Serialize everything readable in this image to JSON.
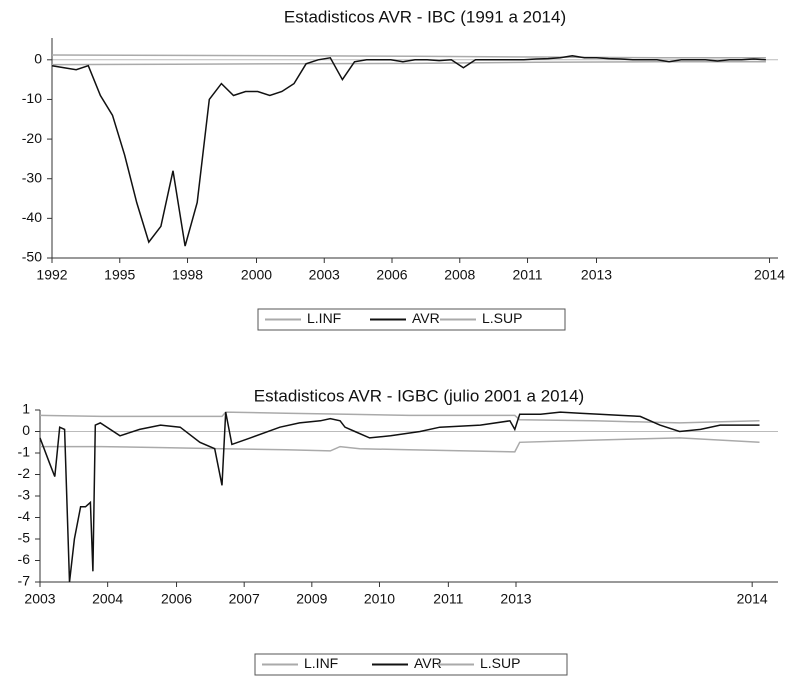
{
  "chart_data": [
    {
      "type": "line",
      "title": "Estadisticos AVR - IBC (1991 a 2014)",
      "xlim": [
        0,
        60
      ],
      "ylim": [
        -50,
        5.5
      ],
      "yticks": [
        0,
        -10,
        -20,
        -30,
        -40,
        -50
      ],
      "xticks": [
        {
          "value": 0,
          "label": "1992"
        },
        {
          "value": 5.6,
          "label": "1995"
        },
        {
          "value": 11.2,
          "label": "1998"
        },
        {
          "value": 16.9,
          "label": "2000"
        },
        {
          "value": 22.5,
          "label": "2003"
        },
        {
          "value": 28.1,
          "label": "2006"
        },
        {
          "value": 33.7,
          "label": "2008"
        },
        {
          "value": 39.3,
          "label": "2011"
        },
        {
          "value": 45.0,
          "label": "2013"
        },
        {
          "value": 59.3,
          "label": "2014"
        }
      ],
      "series": [
        {
          "name": "L.INF",
          "color": "#aaaaaa",
          "x": [
            0,
            10,
            20,
            30,
            40,
            50,
            59
          ],
          "values": [
            -1.2,
            -1.1,
            -1.0,
            -0.9,
            -0.6,
            -0.5,
            -0.5
          ]
        },
        {
          "name": "AVR",
          "color": "#111111",
          "x": [
            0,
            1,
            2,
            3,
            4,
            5,
            6,
            7,
            8,
            9,
            10,
            11,
            12,
            13,
            14,
            15,
            16,
            17,
            18,
            19,
            20,
            21,
            22,
            23,
            24,
            25,
            26,
            27,
            28,
            29,
            30,
            31,
            32,
            33,
            34,
            35,
            36,
            37,
            38,
            39,
            40,
            41,
            42,
            43,
            44,
            45,
            46,
            47,
            48,
            49,
            50,
            51,
            52,
            53,
            54,
            55,
            56,
            57,
            58,
            59
          ],
          "values": [
            -1.5,
            -2,
            -2.5,
            -1.5,
            -9,
            -14,
            -24,
            -36,
            -46,
            -42,
            -28,
            -47,
            -36,
            -10,
            -6,
            -9,
            -8,
            -8,
            -9,
            -8,
            -6,
            -1,
            0,
            0.5,
            -5,
            -0.5,
            0,
            0,
            0,
            -0.5,
            0,
            0,
            -0.2,
            0,
            -2,
            0,
            0,
            0,
            0,
            0,
            0.2,
            0.3,
            0.5,
            1,
            0.5,
            0.5,
            0.3,
            0.2,
            0,
            0,
            0,
            -0.5,
            0,
            0,
            0,
            -0.3,
            0,
            0,
            0.2,
            0
          ]
        },
        {
          "name": "L.SUP",
          "color": "#aaaaaa",
          "x": [
            0,
            10,
            20,
            30,
            40,
            50,
            59
          ],
          "values": [
            1.2,
            1.1,
            1.0,
            0.9,
            0.7,
            0.5,
            0.5
          ]
        }
      ]
    },
    {
      "type": "line",
      "title": "Estadisticos AVR - IGBC (julio 2001 a 2014)",
      "xlim": [
        0,
        60
      ],
      "ylim": [
        -7,
        1
      ],
      "yticks": [
        1,
        0,
        -1,
        -2,
        -3,
        -4,
        -5,
        -6,
        -7
      ],
      "xticks": [
        {
          "value": 0,
          "label": "2003"
        },
        {
          "value": 5.5,
          "label": "2004"
        },
        {
          "value": 11.1,
          "label": "2006"
        },
        {
          "value": 16.6,
          "label": "2007"
        },
        {
          "value": 22.1,
          "label": "2009"
        },
        {
          "value": 27.6,
          "label": "2010"
        },
        {
          "value": 33.2,
          "label": "2011"
        },
        {
          "value": 38.7,
          "label": "2013"
        },
        {
          "value": 57.9,
          "label": "2014"
        }
      ],
      "series": [
        {
          "name": "L.INF",
          "color": "#aaaaaa",
          "x": [
            0,
            5,
            10,
            14.8,
            20,
            23.6,
            24.4,
            26,
            30,
            38.6,
            39.0,
            45,
            52,
            58.5
          ],
          "values": [
            -0.7,
            -0.7,
            -0.75,
            -0.8,
            -0.85,
            -0.9,
            -0.7,
            -0.8,
            -0.85,
            -0.95,
            -0.5,
            -0.4,
            -0.3,
            -0.5
          ]
        },
        {
          "name": "AVR",
          "color": "#111111",
          "x": [
            0,
            0.8,
            1.2,
            1.6,
            2.0,
            2.4,
            2.8,
            3.3,
            3.7,
            4.1,
            4.3,
            4.5,
            4.9,
            6.5,
            8.1,
            9.8,
            11.4,
            13.0,
            14.2,
            14.8,
            15.1,
            15.6,
            17.1,
            19.5,
            21.1,
            22.8,
            23.6,
            24.4,
            24.8,
            25.6,
            26.8,
            28.5,
            30.9,
            32.5,
            35.8,
            38.2,
            38.6,
            39.0,
            40.7,
            42.3,
            43.9,
            45.5,
            47.2,
            48.8,
            50.4,
            52.0,
            53.7,
            55.3,
            56.9,
            58.5
          ],
          "values": [
            -0.3,
            -1.5,
            -2.1,
            0.2,
            0.1,
            -7,
            -5,
            -3.5,
            -3.5,
            -3.3,
            -6.5,
            0.3,
            0.4,
            -0.2,
            0.1,
            0.3,
            0.2,
            -0.5,
            -0.8,
            -2.5,
            0.9,
            -0.6,
            -0.3,
            0.2,
            0.4,
            0.5,
            0.6,
            0.5,
            0.2,
            0,
            -0.3,
            -0.2,
            0,
            0.2,
            0.3,
            0.5,
            0.1,
            0.8,
            0.8,
            0.9,
            0.85,
            0.8,
            0.75,
            0.7,
            0.3,
            0,
            0.1,
            0.3,
            0.3,
            0.3
          ]
        },
        {
          "name": "L.SUP",
          "color": "#aaaaaa",
          "x": [
            0,
            5,
            10,
            14.8,
            15.1,
            20,
            25,
            30,
            38.6,
            39.0,
            45,
            52,
            58.5
          ],
          "values": [
            0.75,
            0.7,
            0.7,
            0.7,
            0.9,
            0.85,
            0.8,
            0.75,
            0.75,
            0.55,
            0.5,
            0.4,
            0.5
          ]
        }
      ]
    }
  ]
}
